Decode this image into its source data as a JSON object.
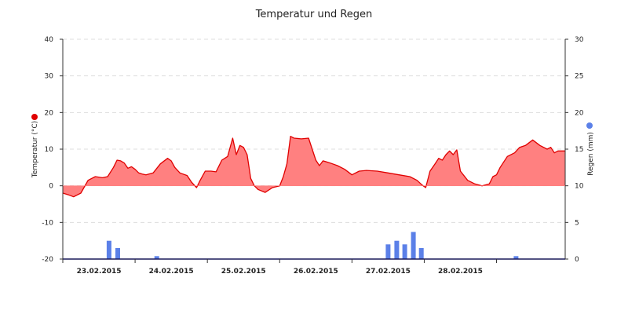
{
  "chart_data": {
    "type": "line",
    "title": "Temperatur und Regen",
    "x_tick_labels": [
      "23.02.2015",
      "24.02.2015",
      "25.02.2015",
      "26.02.2015",
      "27.02.2015",
      "28.02.2015"
    ],
    "y_left": {
      "label": "Temperatur (°C)",
      "ticks": [
        40,
        30,
        20,
        10,
        0,
        -10,
        -20
      ],
      "range": [
        -20,
        40
      ],
      "marker_color": "#e00000"
    },
    "y_right": {
      "label": "Regen (mm)",
      "ticks": [
        30,
        25,
        20,
        15,
        10,
        5,
        0
      ],
      "range": [
        0,
        30
      ],
      "marker_color": "#5b80e8"
    },
    "grid": true,
    "series": [
      {
        "name": "Temperatur",
        "kind": "area",
        "color": "#e00000",
        "fill": "#ff8080",
        "x_days": [
          0,
          0.08,
          0.15,
          0.25,
          0.35,
          0.45,
          0.55,
          0.62,
          0.7,
          0.75,
          0.8,
          0.85,
          0.9,
          0.95,
          1.0,
          1.05,
          1.1,
          1.15,
          1.25,
          1.35,
          1.45,
          1.5,
          1.55,
          1.62,
          1.72,
          1.78,
          1.85,
          1.9,
          1.97,
          2.05,
          2.12,
          2.2,
          2.28,
          2.35,
          2.4,
          2.45,
          2.5,
          2.55,
          2.6,
          2.65,
          2.7,
          2.8,
          2.9,
          3.0,
          3.05,
          3.1,
          3.15,
          3.2,
          3.3,
          3.4,
          3.5,
          3.55,
          3.6,
          3.65,
          3.7,
          3.8,
          3.9,
          4.0,
          4.1,
          4.2,
          4.35,
          4.5,
          4.65,
          4.8,
          4.9,
          4.97,
          5.02,
          5.08,
          5.15,
          5.2,
          5.25,
          5.3,
          5.35,
          5.4,
          5.45,
          5.5,
          5.6,
          5.7,
          5.8,
          5.9,
          5.95,
          6.0,
          6.05,
          6.15,
          6.25,
          6.32,
          6.4,
          6.5,
          6.6,
          6.7,
          6.75,
          6.8,
          6.85,
          6.95
        ],
        "values": [
          -2,
          -2.5,
          -3,
          -2,
          1.5,
          2.5,
          2.2,
          2.5,
          5,
          7,
          6.8,
          6.2,
          4.8,
          5.2,
          4.5,
          3.5,
          3.2,
          3.0,
          3.5,
          6,
          7.5,
          6.8,
          5,
          3.5,
          2.8,
          1,
          -0.5,
          1.5,
          4,
          4,
          3.8,
          7,
          8,
          13,
          8.5,
          11,
          10.5,
          8.5,
          2,
          0,
          -1,
          -1.8,
          -0.5,
          0,
          2.5,
          6,
          13.5,
          13,
          12.8,
          13,
          7,
          5.5,
          6.8,
          6.5,
          6.2,
          5.5,
          4.5,
          3,
          4,
          4.2,
          4,
          3.5,
          3,
          2.5,
          1.5,
          0.2,
          -0.5,
          4,
          6,
          7.5,
          7,
          8.5,
          9.5,
          8.5,
          9.8,
          4,
          1.5,
          0.5,
          0,
          0.5,
          2.5,
          3,
          5,
          8,
          9,
          10.5,
          11,
          12.5,
          11,
          10,
          10.5,
          9,
          9.5,
          9.5
        ]
      },
      {
        "name": "Regen",
        "kind": "bar",
        "color": "#5b80e8",
        "x_days": [
          0.64,
          0.76,
          1.3,
          4.5,
          4.62,
          4.73,
          4.85,
          4.96,
          6.27
        ],
        "values": [
          2.5,
          1.5,
          0.4,
          2.0,
          2.5,
          2.0,
          3.7,
          1.5,
          0.4
        ]
      }
    ]
  }
}
